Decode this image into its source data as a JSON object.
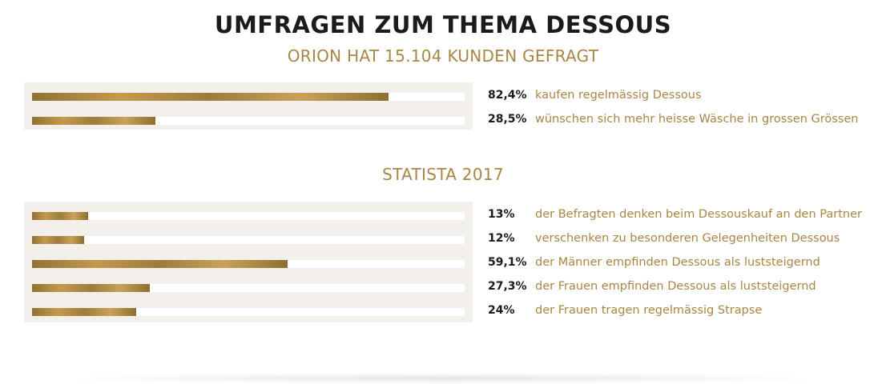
{
  "title": "UMFRAGEN ZUM THEMA DESSOUS",
  "colors": {
    "accent": "#a88643",
    "heading": "#1b1b1b",
    "panel": "#f3f0eb"
  },
  "sections": [
    {
      "subtitle": "ORION HAT 15.104 KUNDEN GEFRAGT"
    },
    {
      "subtitle": "STATISTA 2017"
    }
  ],
  "chart_data": [
    {
      "type": "bar",
      "orientation": "horizontal",
      "title": "ORION HAT 15.104 KUNDEN GEFRAGT",
      "xlim": [
        0,
        100
      ],
      "categories": [
        "kaufen regelmässig Dessous",
        "wünschen sich mehr heisse Wäsche in grossen Grössen"
      ],
      "values": [
        82.4,
        28.5
      ],
      "value_labels": [
        "82,4%",
        "28,5%"
      ]
    },
    {
      "type": "bar",
      "orientation": "horizontal",
      "title": "STATISTA 2017",
      "xlim": [
        0,
        100
      ],
      "categories": [
        "der Befragten denken beim Dessouskauf an den Partner",
        "verschenken zu besonderen Gelegenheiten Dessous",
        "der Männer empfinden Dessous als luststeigernd",
        "der Frauen empfinden Dessous als luststeigernd",
        "der Frauen tragen regelmässig Strapse"
      ],
      "values": [
        13,
        12,
        59.1,
        27.3,
        24
      ],
      "value_labels": [
        "13%",
        "12%",
        "59,1%",
        "27,3%",
        "24%"
      ]
    }
  ]
}
